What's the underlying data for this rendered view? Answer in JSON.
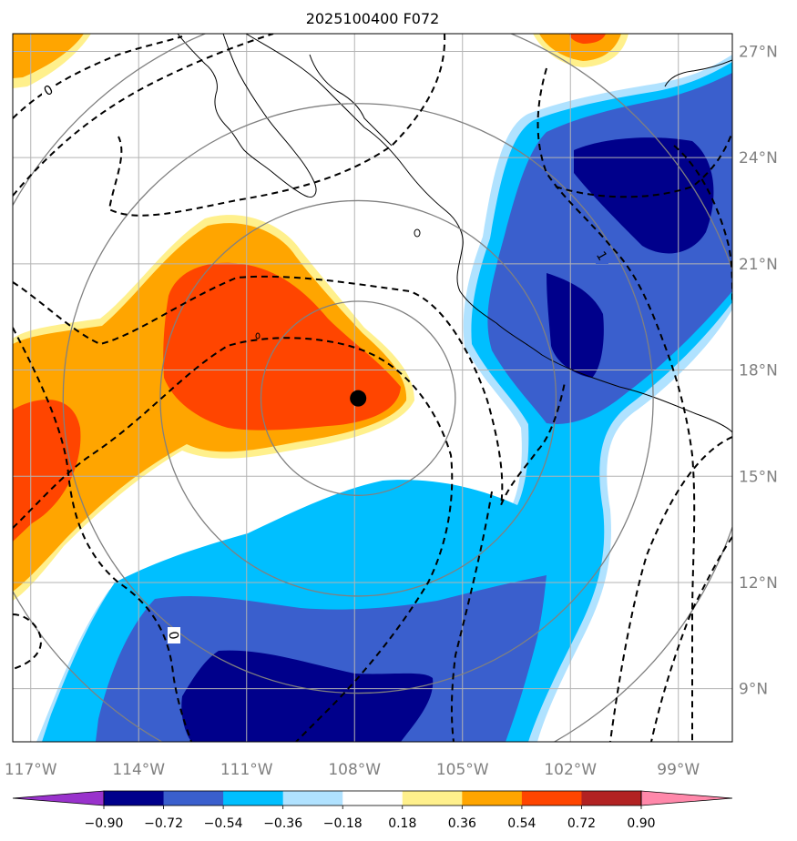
{
  "title": "2025100400 F072",
  "colors": {
    "palette": [
      "#9932cc",
      "#00008b",
      "#3a5fcd",
      "#00bfff",
      "#b0e2ff",
      "#ffffff",
      "#fff08c",
      "#ffa500",
      "#ff4500",
      "#b22222",
      "#ff88aa"
    ],
    "coastline": "#000000",
    "grid": "#b3b3b3",
    "range_circles": "#808080",
    "contours": "#000000",
    "storm_center": "#000000"
  },
  "legend": {
    "levels": [
      "−0.90",
      "−0.72",
      "−0.54",
      "−0.36",
      "−0.18",
      "0.18",
      "0.36",
      "0.54",
      "0.72",
      "0.90"
    ],
    "extend": "both"
  },
  "axes": {
    "lat_labels": [
      "27°N",
      "24°N",
      "21°N",
      "18°N",
      "15°N",
      "12°N",
      "9°N"
    ],
    "lon_labels": [
      "117°W",
      "114°W",
      "111°W",
      "108°W",
      "105°W",
      "102°W",
      "99°W"
    ],
    "lat_range": [
      7.5,
      27.5
    ],
    "lon_range": [
      -117.5,
      -97.5
    ]
  },
  "contour_labels": [
    "0",
    "0",
    "1"
  ],
  "storm_center": {
    "lon": -107.9,
    "lat": 17.2
  },
  "range_circle_radii_deg": [
    2.7,
    5.5,
    8.2,
    11.0
  ]
}
